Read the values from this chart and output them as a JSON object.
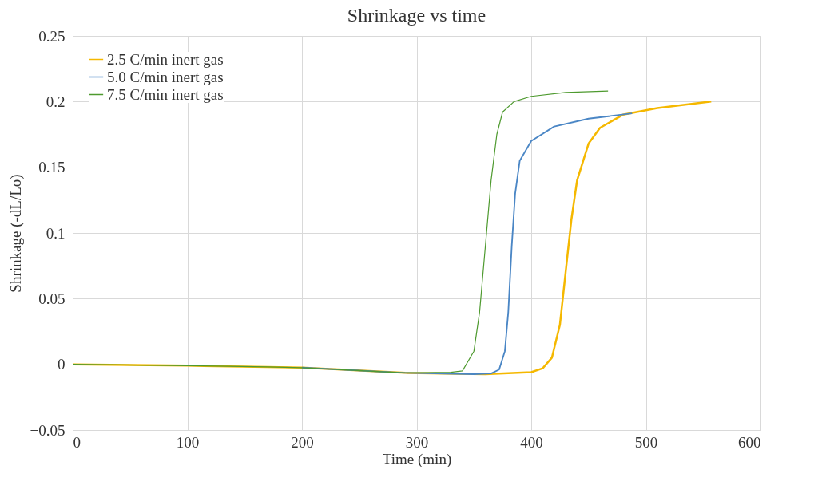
{
  "chart_data": {
    "type": "line",
    "title": "Shrinkage vs time",
    "xlabel": "Time (min)",
    "ylabel": "Shrinkage (-dL/Lo)",
    "xlim": [
      0,
      600
    ],
    "xticks": [
      0,
      100,
      200,
      300,
      400,
      500,
      600
    ],
    "ylim": [
      -0.05,
      0.25
    ],
    "yticks": [
      -0.05,
      0,
      0.05,
      0.1,
      0.15,
      0.2,
      0.25
    ],
    "grid": true,
    "legend": "top left",
    "marker": "none",
    "line_style": "solid",
    "series": [
      {
        "name": "2.5 C/min inert gas",
        "color": "#f5b800",
        "x": [
          0,
          100,
          170,
          200,
          290,
          360,
          400,
          410,
          418,
          425,
          430,
          435,
          440,
          450,
          460,
          480,
          510,
          557
        ],
        "values": [
          0,
          -0.001,
          -0.002,
          -0.0025,
          -0.0065,
          -0.0075,
          -0.006,
          -0.003,
          0.005,
          0.03,
          0.07,
          0.11,
          0.14,
          0.168,
          0.18,
          0.19,
          0.195,
          0.2
        ]
      },
      {
        "name": "5.0 C/min inert gas",
        "color": "#4a86c5",
        "x": [
          200,
          290,
          350,
          365,
          372,
          377,
          380,
          383,
          386,
          390,
          400,
          420,
          450,
          488
        ],
        "values": [
          -0.0025,
          -0.0065,
          -0.0075,
          -0.007,
          -0.004,
          0.01,
          0.04,
          0.09,
          0.13,
          0.155,
          0.17,
          0.181,
          0.187,
          0.191
        ]
      },
      {
        "name": "7.5 C/min inert gas",
        "color": "#4e9a2f",
        "x": [
          0,
          100,
          170,
          200,
          290,
          330,
          340,
          350,
          355,
          360,
          365,
          370,
          375,
          385,
          400,
          430,
          467
        ],
        "values": [
          0,
          -0.001,
          -0.002,
          -0.0025,
          -0.0065,
          -0.006,
          -0.005,
          0.01,
          0.04,
          0.09,
          0.14,
          0.175,
          0.192,
          0.2,
          0.204,
          0.207,
          0.208
        ]
      }
    ]
  }
}
